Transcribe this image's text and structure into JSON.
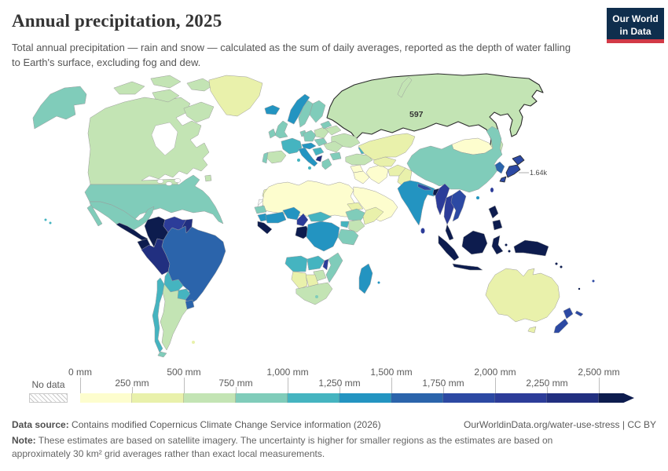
{
  "header": {
    "title": "Annual precipitation, 2025",
    "subtitle": "Total annual precipitation — rain and snow — calculated as the sum of daily averages, reported as the depth of water falling to Earth's surface, excluding fog and dew.",
    "logo": {
      "line1": "Our World",
      "line2": "in Data",
      "bg": "#0f2e4d",
      "accent": "#d23a47"
    }
  },
  "map": {
    "labels": [
      {
        "country": "Russia",
        "text": "597"
      },
      {
        "country": "Japan",
        "text": "1.64k"
      }
    ]
  },
  "legend": {
    "no_data_label": "No data",
    "unit": "mm",
    "tick_labels": [
      "0 mm",
      "250 mm",
      "500 mm",
      "750 mm",
      "1,000 mm",
      "1,250 mm",
      "1,500 mm",
      "1,750 mm",
      "2,000 mm",
      "2,250 mm",
      "2,500 mm"
    ],
    "bins": [
      {
        "range": "0–250 mm",
        "color": "#fdfdce"
      },
      {
        "range": "250–500 mm",
        "color": "#e9f1ab"
      },
      {
        "range": "500–750 mm",
        "color": "#c3e4b4"
      },
      {
        "range": "750–1,000 mm",
        "color": "#80ccba"
      },
      {
        "range": "1,000–1,250 mm",
        "color": "#45b4c0"
      },
      {
        "range": "1,250–1,500 mm",
        "color": "#2394c1"
      },
      {
        "range": "1,500–1,750 mm",
        "color": "#2b64ab"
      },
      {
        "range": "1,750–2,000 mm",
        "color": "#2c49a3"
      },
      {
        "range": "2,000–2,250 mm",
        "color": "#2c3c99"
      },
      {
        "range": "2,250–2,500 mm",
        "color": "#212f80"
      },
      {
        "range": "2,500+ mm",
        "color": "#0d1c4e"
      }
    ]
  },
  "footer": {
    "source_label": "Data source:",
    "source_text": "Contains modified Copernicus Climate Change Service information (2026)",
    "attribution": "OurWorldinData.org/water-use-stress | CC BY",
    "note_label": "Note:",
    "note_text": "These estimates are based on satellite imagery. The uncertainty is higher for smaller regions as the estimates are based on approximately 30 km² grid averages rather than exact local measurements."
  }
}
